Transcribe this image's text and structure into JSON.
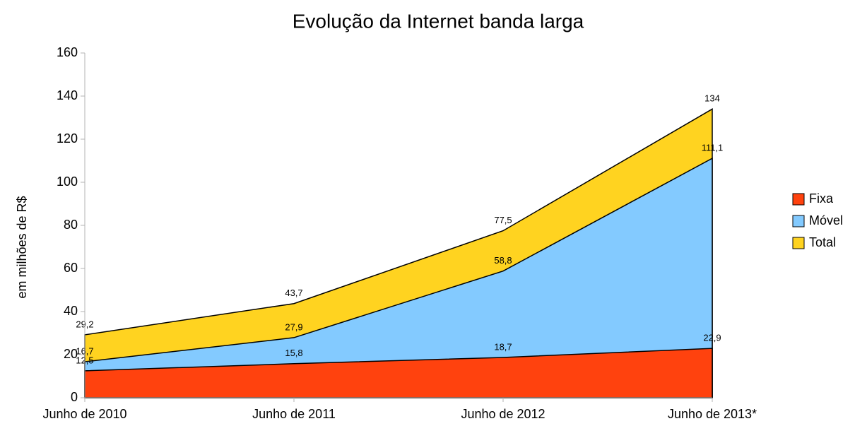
{
  "chart_data": {
    "type": "area",
    "title": "Evolução da Internet banda larga",
    "ylabel": "em milhões de R$",
    "categories": [
      "Junho de 2010",
      "Junho de 2011",
      "Junho de 2012",
      "Junho de 2013*"
    ],
    "series": [
      {
        "name": "Fixa",
        "color": "#ff420e",
        "values": [
          12.5,
          15.8,
          18.7,
          22.9
        ],
        "value_labels": [
          "12,5",
          "15,8",
          "18,7",
          "22,9"
        ]
      },
      {
        "name": "Móvel",
        "color": "#83caff",
        "values": [
          16.7,
          27.9,
          58.8,
          111.1
        ],
        "value_labels": [
          "16,7",
          "27,9",
          "58,8",
          "111,1"
        ]
      },
      {
        "name": "Total",
        "color": "#ffd320",
        "values": [
          29.2,
          43.7,
          77.5,
          134
        ],
        "value_labels": [
          "29,2",
          "43,7",
          "77,5",
          "134"
        ]
      }
    ],
    "ylim": [
      0,
      160
    ],
    "yticks": [
      0,
      20,
      40,
      60,
      80,
      100,
      120,
      140,
      160
    ],
    "grid": false,
    "legend": "right"
  }
}
